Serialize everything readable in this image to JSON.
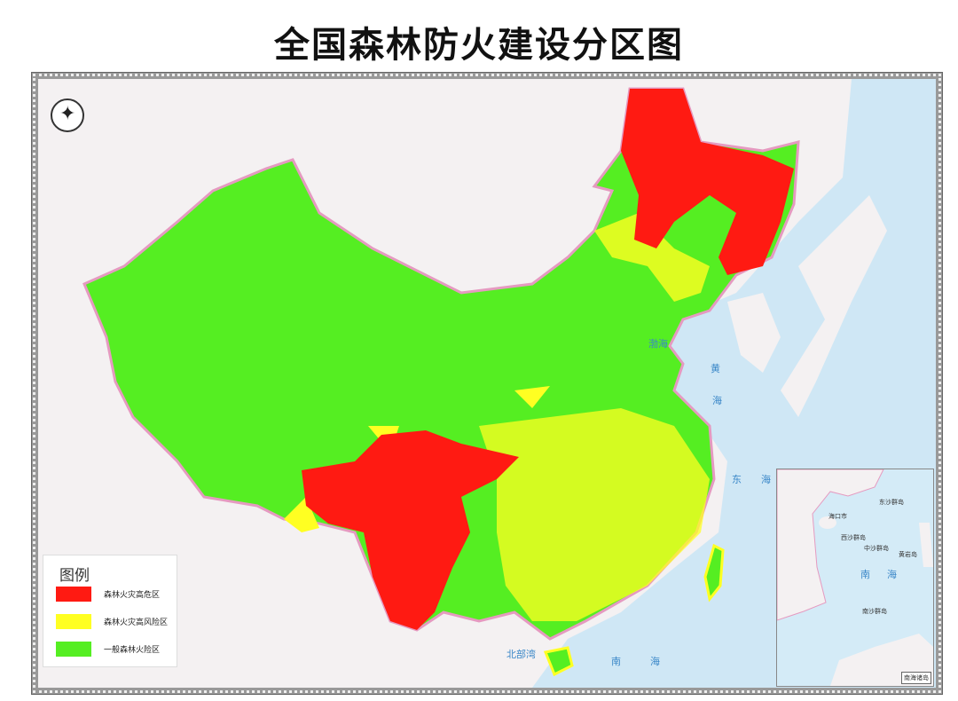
{
  "title": "全国森林防火建设分区图",
  "legend": {
    "heading": "图例",
    "items": [
      {
        "label": "森林火灾高危区",
        "color": "#ff1a12"
      },
      {
        "label": "森林火灾高风险区",
        "color": "#ffff22"
      },
      {
        "label": "一般森林火险区",
        "color": "#55ee22"
      }
    ]
  },
  "sea_labels": {
    "bohai": "渤海",
    "huanghai_1": "黄",
    "huanghai_2": "海",
    "donghai_1": "东",
    "donghai_2": "海",
    "nanhai_1": "南",
    "nanhai_2": "海",
    "beibuwan": "北部湾"
  },
  "inset": {
    "title": "南海诸岛",
    "sea_1": "南",
    "sea_2": "海",
    "islands": [
      "东沙群岛",
      "西沙群岛",
      "中沙群岛",
      "黄岩岛",
      "南沙群岛",
      "海口市"
    ]
  },
  "colors": {
    "sea": "#cfe7f5",
    "foreign_land": "#f4f1f2",
    "border": "#e59ac0"
  },
  "compass_icon": "north-arrow-icon"
}
